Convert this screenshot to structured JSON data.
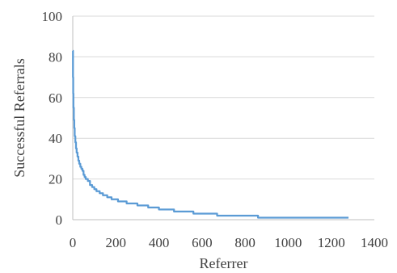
{
  "chart_data": {
    "type": "line",
    "title": "",
    "xlabel": "Referrer",
    "ylabel": "Successful Referrals",
    "xlim": [
      0,
      1400
    ],
    "ylim": [
      0,
      100
    ],
    "x_ticks": [
      "0",
      "200",
      "400",
      "600",
      "800",
      "1000",
      "1200",
      "1400"
    ],
    "y_ticks": [
      "0",
      "20",
      "40",
      "60",
      "80",
      "100"
    ],
    "grid": "horizontal",
    "legend": "none",
    "series": [
      {
        "color": "#5b9bd5",
        "points": [
          [
            0,
            83
          ],
          [
            1,
            70
          ],
          [
            2,
            62
          ],
          [
            3,
            55
          ],
          [
            5,
            49
          ],
          [
            7,
            45
          ],
          [
            9,
            41
          ],
          [
            12,
            38
          ],
          [
            15,
            35
          ],
          [
            18,
            33
          ],
          [
            22,
            31
          ],
          [
            26,
            29
          ],
          [
            30,
            27.5
          ],
          [
            35,
            26
          ],
          [
            40,
            25
          ],
          [
            45,
            24
          ],
          [
            50,
            22
          ],
          [
            55,
            21
          ],
          [
            60,
            20
          ],
          [
            70,
            19
          ],
          [
            80,
            17
          ],
          [
            90,
            16
          ],
          [
            100,
            15
          ],
          [
            110,
            14
          ],
          [
            125,
            13
          ],
          [
            140,
            12
          ],
          [
            160,
            11
          ],
          [
            180,
            10
          ],
          [
            210,
            9
          ],
          [
            250,
            8
          ],
          [
            300,
            7
          ],
          [
            350,
            6
          ],
          [
            400,
            5
          ],
          [
            470,
            4
          ],
          [
            560,
            3
          ],
          [
            670,
            2
          ],
          [
            860,
            1
          ],
          [
            1280,
            1
          ]
        ]
      }
    ]
  }
}
